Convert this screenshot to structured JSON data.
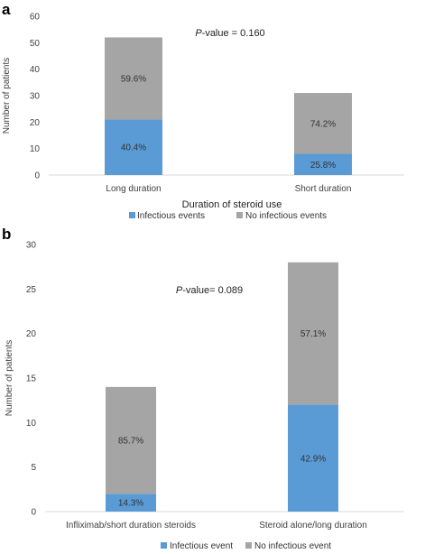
{
  "chart_data": [
    {
      "panel": "a",
      "type": "bar",
      "stacked": true,
      "categories": [
        "Long duration",
        "Short duration"
      ],
      "series": [
        {
          "name": "Infectious events",
          "color": "#5b9bd5",
          "values": [
            21,
            8
          ],
          "labels": [
            "40.4%",
            "25.8%"
          ]
        },
        {
          "name": "No infectious events",
          "color": "#a5a5a5",
          "values": [
            31,
            23
          ],
          "labels": [
            "59.6%",
            "74.2%"
          ]
        }
      ],
      "annotation": {
        "italic": "P",
        "text": "-value = 0.160"
      },
      "xlabel": "Duration of steroid use",
      "ylabel": "Number of patients",
      "ylim": [
        0,
        60
      ],
      "yticks": [
        0,
        10,
        20,
        30,
        40,
        50,
        60
      ],
      "legend": "bottom",
      "grid": false
    },
    {
      "panel": "b",
      "type": "bar",
      "stacked": true,
      "categories": [
        "Infliximab/short duration steroids",
        "Steroid alone/long duration"
      ],
      "series": [
        {
          "name": "Infectious event",
          "color": "#5b9bd5",
          "values": [
            2,
            12
          ],
          "labels": [
            "14.3%",
            "42.9%"
          ]
        },
        {
          "name": "No infectious event",
          "color": "#a5a5a5",
          "values": [
            12,
            16
          ],
          "labels": [
            "85.7%",
            "57.1%"
          ]
        }
      ],
      "annotation": {
        "italic": "P",
        "text": "-value= 0.089"
      },
      "xlabel": "",
      "ylabel": "Number of patients",
      "ylim": [
        0,
        30
      ],
      "yticks": [
        0,
        5,
        10,
        15,
        20,
        25,
        30
      ],
      "legend": "bottom",
      "grid": false
    }
  ]
}
